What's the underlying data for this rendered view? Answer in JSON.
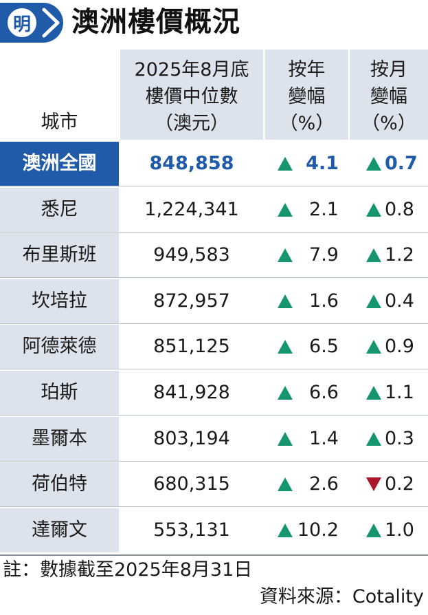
{
  "header": {
    "logo_text": "明",
    "title": "澳洲樓價概況"
  },
  "table": {
    "columns": [
      "城市",
      "2025年8月底\n樓價中位數\n（澳元）",
      "按年\n變幅\n（%）",
      "按月\n變幅\n（%）"
    ],
    "rows": [
      {
        "city": "澳洲全國",
        "price": "848,858",
        "yoy": "4.1",
        "yoy_dir": "up",
        "mom": "0.7",
        "mom_dir": "up"
      },
      {
        "city": "悉尼",
        "price": "1,224,341",
        "yoy": "2.1",
        "yoy_dir": "up",
        "mom": "0.8",
        "mom_dir": "up"
      },
      {
        "city": "布里斯班",
        "price": "949,583",
        "yoy": "7.9",
        "yoy_dir": "up",
        "mom": "1.2",
        "mom_dir": "up"
      },
      {
        "city": "坎培拉",
        "price": "872,957",
        "yoy": "1.6",
        "yoy_dir": "up",
        "mom": "0.4",
        "mom_dir": "up"
      },
      {
        "city": "阿德萊德",
        "price": "851,125",
        "yoy": "6.5",
        "yoy_dir": "up",
        "mom": "0.9",
        "mom_dir": "up"
      },
      {
        "city": "珀斯",
        "price": "841,928",
        "yoy": "6.6",
        "yoy_dir": "up",
        "mom": "1.1",
        "mom_dir": "up"
      },
      {
        "city": "墨爾本",
        "price": "803,194",
        "yoy": "1.4",
        "yoy_dir": "up",
        "mom": "0.3",
        "mom_dir": "up"
      },
      {
        "city": "荷伯特",
        "price": "680,315",
        "yoy": "2.6",
        "yoy_dir": "up",
        "mom": "0.2",
        "mom_dir": "down"
      },
      {
        "city": "達爾文",
        "price": "553,131",
        "yoy": "10.2",
        "yoy_dir": "up",
        "mom": "1.0",
        "mom_dir": "up"
      }
    ]
  },
  "footer": {
    "note": "註：數據截至2025年8月31日",
    "source": "資料來源：Cotality"
  },
  "colors": {
    "brand_blue": "#1f5ba8",
    "header_bg": "#dde3ec",
    "up_green": "#16966f",
    "down_red": "#a8172b"
  },
  "chart_data": {
    "type": "table",
    "title": "澳洲樓價概況",
    "columns": [
      "城市",
      "2025年8月底樓價中位數（澳元）",
      "按年變幅（%）",
      "按月變幅（%）"
    ],
    "rows": [
      [
        "澳洲全國",
        848858,
        4.1,
        0.7
      ],
      [
        "悉尼",
        1224341,
        2.1,
        0.8
      ],
      [
        "布里斯班",
        949583,
        7.9,
        1.2
      ],
      [
        "坎培拉",
        872957,
        1.6,
        0.4
      ],
      [
        "阿德萊德",
        851125,
        6.5,
        0.9
      ],
      [
        "珀斯",
        841928,
        6.6,
        1.1
      ],
      [
        "墨爾本",
        803194,
        1.4,
        0.3
      ],
      [
        "荷伯特",
        680315,
        2.6,
        -0.2
      ],
      [
        "達爾文",
        553131,
        10.2,
        1.0
      ]
    ]
  }
}
